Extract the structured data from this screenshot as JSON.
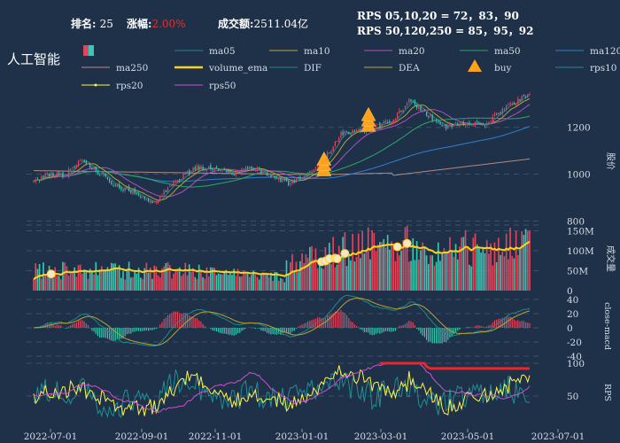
{
  "header": {
    "rank_label": "排名:",
    "rank_value": "25",
    "change_label": "涨幅:",
    "change_value": "2.00%",
    "turnover_label": "成交额:",
    "turnover_value": "2511.04亿",
    "rps_line1": "RPS 05,10,20 = 72，83，90",
    "rps_line2": "RPS 50,120,250 = 85，95，92"
  },
  "title": "人工智能",
  "colors": {
    "background": "#1f3148",
    "up": "#e0475f",
    "down": "#3bc7b0",
    "ma05": "#2a7f8f",
    "ma10": "#b5a433",
    "ma20": "#b04fbf",
    "ma50": "#2aa866",
    "ma120": "#2f7fd1",
    "ma250": "#b48a86",
    "volume_ema": "#ffd21a",
    "dif": "#1e8a8a",
    "dea": "#b5a433",
    "buy": "#ffa21a",
    "rps10": "#1e8f96",
    "rps20": "#fff44a",
    "rps50": "#cf4fcf",
    "grid": "#3e5068"
  },
  "legend": [
    {
      "key": "candle",
      "label": "",
      "icon": "candle-icon"
    },
    {
      "key": "ma05",
      "label": "ma05"
    },
    {
      "key": "ma10",
      "label": "ma10"
    },
    {
      "key": "ma20",
      "label": "ma20"
    },
    {
      "key": "ma50",
      "label": "ma50"
    },
    {
      "key": "ma120",
      "label": "ma120"
    },
    {
      "key": "ma250",
      "label": "ma250"
    },
    {
      "key": "volume_ema",
      "label": "volume_ema"
    },
    {
      "key": "dif",
      "label": "DIF"
    },
    {
      "key": "dea",
      "label": "DEA"
    },
    {
      "key": "buy",
      "label": "buy",
      "icon": "triangle-icon"
    },
    {
      "key": "rps10",
      "label": "rps10"
    },
    {
      "key": "rps20",
      "label": "rps20"
    },
    {
      "key": "rps50",
      "label": "rps50"
    }
  ],
  "chart_data": {
    "type": "candlestick",
    "x_tick_labels": [
      "2022-07-01",
      "2022-09-01",
      "2022-11-01",
      "2023-01-01",
      "2023-03-01",
      "2023-05-01",
      "2023-07-01"
    ],
    "price": {
      "ylabel": "股价",
      "yticks": [
        800,
        1000,
        1200
      ],
      "ylim": [
        790,
        1320
      ],
      "ohlc_anchors": [
        {
          "date": "2022-06-24",
          "close": 960
        },
        {
          "date": "2022-07-05",
          "close": 1000
        },
        {
          "date": "2022-07-18",
          "close": 995
        },
        {
          "date": "2022-07-28",
          "close": 1060
        },
        {
          "date": "2022-08-08",
          "close": 1020
        },
        {
          "date": "2022-08-22",
          "close": 960
        },
        {
          "date": "2022-09-05",
          "close": 920
        },
        {
          "date": "2022-09-20",
          "close": 875
        },
        {
          "date": "2022-10-05",
          "close": 970
        },
        {
          "date": "2022-10-20",
          "close": 1030
        },
        {
          "date": "2022-11-03",
          "close": 1025
        },
        {
          "date": "2022-11-15",
          "close": 1005
        },
        {
          "date": "2022-11-28",
          "close": 1035
        },
        {
          "date": "2022-12-12",
          "close": 1000
        },
        {
          "date": "2022-12-26",
          "close": 960
        },
        {
          "date": "2023-01-06",
          "close": 1000
        },
        {
          "date": "2023-01-18",
          "close": 1040
        },
        {
          "date": "2023-02-01",
          "close": 1175
        },
        {
          "date": "2023-02-15",
          "close": 1185
        },
        {
          "date": "2023-02-27",
          "close": 1200
        },
        {
          "date": "2023-03-10",
          "close": 1235
        },
        {
          "date": "2023-03-22",
          "close": 1315
        },
        {
          "date": "2023-04-05",
          "close": 1250
        },
        {
          "date": "2023-04-18",
          "close": 1200
        },
        {
          "date": "2023-05-02",
          "close": 1220
        },
        {
          "date": "2023-05-16",
          "close": 1210
        },
        {
          "date": "2023-05-30",
          "close": 1285
        },
        {
          "date": "2023-06-14",
          "close": 1335
        }
      ],
      "buy_signals": [
        {
          "date": "2023-01-19",
          "price": 1000
        },
        {
          "date": "2023-02-20",
          "price": 1190
        }
      ]
    },
    "volume": {
      "ylabel": "成交量",
      "yticks": [
        "0",
        "50M",
        "100M",
        "150M"
      ],
      "ylim": [
        0,
        160000000
      ],
      "ema_highlights": [
        "2022-07-07",
        "2023-01-18",
        "2023-01-21",
        "2023-01-24",
        "2023-01-27",
        "2023-01-30",
        "2023-02-04",
        "2023-03-14",
        "2023-03-21"
      ]
    },
    "macd": {
      "ylabel": "close-macd",
      "yticks": [
        -40,
        -20,
        0,
        20,
        40
      ]
    },
    "rps": {
      "ylabel": "RPS",
      "yticks": [
        50,
        100
      ],
      "ylim": [
        0,
        105
      ]
    }
  }
}
